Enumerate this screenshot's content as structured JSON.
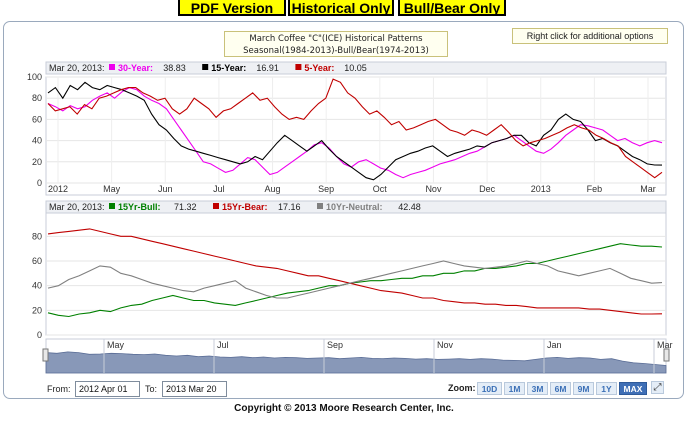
{
  "top_buttons": [
    "PDF Version",
    "Historical Only",
    "Bull/Bear Only"
  ],
  "title_lines": [
    "March Coffee \"C\"(ICE) Historical Patterns",
    "Seasonal(1984-2013)-Bull/Bear(1974-2013)"
  ],
  "right_click_note": "Right click for additional options",
  "range": {
    "from_label": "From:",
    "from_value": "2012 Apr 01",
    "to_label": "To:",
    "to_value": "2013 Mar 20"
  },
  "zoom": {
    "label": "Zoom:",
    "buttons": [
      "10D",
      "1M",
      "3M",
      "6M",
      "9M",
      "1Y",
      "MAX"
    ],
    "active": "MAX"
  },
  "copyright": "Copyright © 2013 Moore Research Center, Inc.",
  "colors": {
    "green": "#008000",
    "red": "#c00000",
    "gray": "#808080",
    "magenta": "#ee00ee",
    "black": "#000000",
    "button_yellow": "#ffff00"
  },
  "chart_data": [
    {
      "type": "line",
      "panel": "historical",
      "legend_date": "Mar 20, 2013:",
      "legend": [
        {
          "name": "30-Year",
          "value": "38.83",
          "color": "#ee00ee"
        },
        {
          "name": "15-Year",
          "value": "16.91",
          "color": "#000000"
        },
        {
          "name": "5-Year",
          "value": "10.05",
          "color": "#c00000"
        }
      ],
      "x_ticks": [
        "2012",
        "May",
        "Jun",
        "Jul",
        "Aug",
        "Sep",
        "Oct",
        "Nov",
        "Dec",
        "2013",
        "Feb",
        "Mar"
      ],
      "y_ticks": [
        "0",
        "20",
        "40",
        "60",
        "80",
        "100"
      ],
      "ylim": [
        0,
        100
      ],
      "series": [
        {
          "name": "30-Year",
          "color": "#ee00ee",
          "values": [
            75,
            72,
            68,
            73,
            70,
            72,
            78,
            82,
            85,
            80,
            86,
            90,
            88,
            82,
            78,
            75,
            70,
            60,
            50,
            40,
            30,
            20,
            18,
            14,
            10,
            12,
            18,
            24,
            22,
            15,
            8,
            10,
            15,
            20,
            25,
            30,
            36,
            38,
            33,
            25,
            18,
            15,
            20,
            22,
            18,
            14,
            12,
            8,
            5,
            8,
            10,
            12,
            15,
            18,
            20,
            22,
            25,
            28,
            30,
            34,
            38,
            40,
            42,
            45,
            40,
            35,
            30,
            28,
            32,
            38,
            45,
            50,
            55,
            54,
            52,
            50,
            45,
            40,
            42,
            38,
            35,
            38,
            40,
            38
          ]
        },
        {
          "name": "15-Year",
          "color": "#000000",
          "values": [
            85,
            90,
            80,
            92,
            88,
            95,
            90,
            88,
            92,
            90,
            88,
            85,
            82,
            78,
            65,
            55,
            50,
            42,
            35,
            32,
            30,
            28,
            26,
            24,
            22,
            20,
            18,
            20,
            25,
            22,
            30,
            38,
            45,
            40,
            35,
            30,
            35,
            40,
            32,
            25,
            20,
            15,
            10,
            5,
            3,
            8,
            15,
            22,
            25,
            28,
            30,
            33,
            35,
            30,
            25,
            28,
            30,
            32,
            35,
            34,
            38,
            40,
            42,
            45,
            45,
            38,
            35,
            45,
            50,
            60,
            65,
            60,
            58,
            50,
            40,
            42,
            38,
            35,
            30,
            25,
            22,
            18,
            17,
            16.91
          ]
        },
        {
          "name": "5-Year",
          "color": "#c00000",
          "values": [
            75,
            68,
            70,
            72,
            65,
            74,
            70,
            80,
            82,
            85,
            88,
            90,
            90,
            85,
            82,
            78,
            80,
            70,
            65,
            70,
            80,
            75,
            70,
            62,
            68,
            70,
            75,
            80,
            85,
            78,
            80,
            72,
            65,
            60,
            62,
            60,
            68,
            75,
            80,
            98,
            95,
            85,
            80,
            72,
            65,
            68,
            62,
            55,
            58,
            50,
            52,
            55,
            58,
            60,
            55,
            50,
            48,
            45,
            50,
            48,
            45,
            50,
            55,
            48,
            40,
            35,
            38,
            40,
            42,
            45,
            48,
            52,
            55,
            52,
            50,
            45,
            42,
            38,
            35,
            25,
            20,
            15,
            10,
            5,
            10.05
          ]
        }
      ]
    },
    {
      "type": "line",
      "panel": "bull-bear",
      "legend_date": "Mar 20, 2013:",
      "legend": [
        {
          "name": "15Yr-Bull",
          "value": "71.32",
          "color": "#008000"
        },
        {
          "name": "15Yr-Bear",
          "value": "17.16",
          "color": "#c00000"
        },
        {
          "name": "10Yr-Neutral",
          "value": "42.48",
          "color": "#808080"
        }
      ],
      "y_ticks": [
        "0",
        "20",
        "40",
        "60",
        "80"
      ],
      "ylim": [
        0,
        90
      ],
      "series": [
        {
          "name": "15Yr-Bull",
          "color": "#008000",
          "values": [
            18,
            16,
            15,
            17,
            18,
            20,
            19,
            22,
            24,
            25,
            28,
            30,
            32,
            30,
            28,
            28,
            26,
            25,
            24,
            26,
            28,
            30,
            32,
            34,
            35,
            36,
            38,
            40,
            40,
            42,
            43,
            44,
            44,
            45,
            46,
            46,
            48,
            48,
            50,
            50,
            52,
            52,
            54,
            54,
            55,
            56,
            58,
            58,
            60,
            62,
            64,
            66,
            68,
            70,
            72,
            74,
            73,
            72,
            72,
            71.32
          ]
        },
        {
          "name": "15Yr-Bear",
          "color": "#c00000",
          "values": [
            82,
            83,
            84,
            85,
            86,
            84,
            82,
            80,
            80,
            78,
            76,
            74,
            72,
            70,
            68,
            66,
            64,
            62,
            60,
            58,
            56,
            55,
            54,
            52,
            50,
            48,
            48,
            46,
            44,
            42,
            40,
            38,
            36,
            35,
            34,
            32,
            30,
            30,
            28,
            27,
            26,
            26,
            25,
            25,
            24,
            24,
            23,
            22,
            22,
            22,
            22,
            22,
            21,
            21,
            20,
            19,
            18,
            17,
            17,
            17.16
          ]
        },
        {
          "name": "10Yr-Neutral",
          "color": "#808080",
          "values": [
            38,
            40,
            45,
            48,
            52,
            56,
            55,
            50,
            48,
            45,
            42,
            40,
            38,
            36,
            35,
            38,
            40,
            42,
            44,
            38,
            35,
            32,
            30,
            30,
            32,
            34,
            36,
            38,
            40,
            42,
            44,
            46,
            48,
            50,
            52,
            54,
            56,
            58,
            60,
            58,
            56,
            55,
            54,
            55,
            56,
            58,
            60,
            58,
            56,
            52,
            50,
            48,
            50,
            52,
            54,
            50,
            46,
            44,
            42,
            42.48
          ]
        }
      ]
    },
    {
      "type": "area",
      "panel": "navigator",
      "x_ticks": [
        "May",
        "Jul",
        "Sep",
        "Nov",
        "Jan",
        "Mar"
      ],
      "values": [
        60,
        58,
        62,
        60,
        55,
        56,
        58,
        57,
        55,
        54,
        56,
        52,
        50,
        52,
        48,
        50,
        47,
        46,
        48,
        45,
        47,
        44,
        46,
        45,
        43,
        44,
        45,
        42,
        44,
        46,
        43,
        42,
        44,
        43,
        41,
        42,
        40,
        41,
        42,
        40,
        42,
        41,
        38,
        37,
        36,
        40,
        44,
        46,
        43,
        45,
        44,
        40,
        42,
        35,
        30,
        28,
        25,
        22
      ]
    }
  ]
}
